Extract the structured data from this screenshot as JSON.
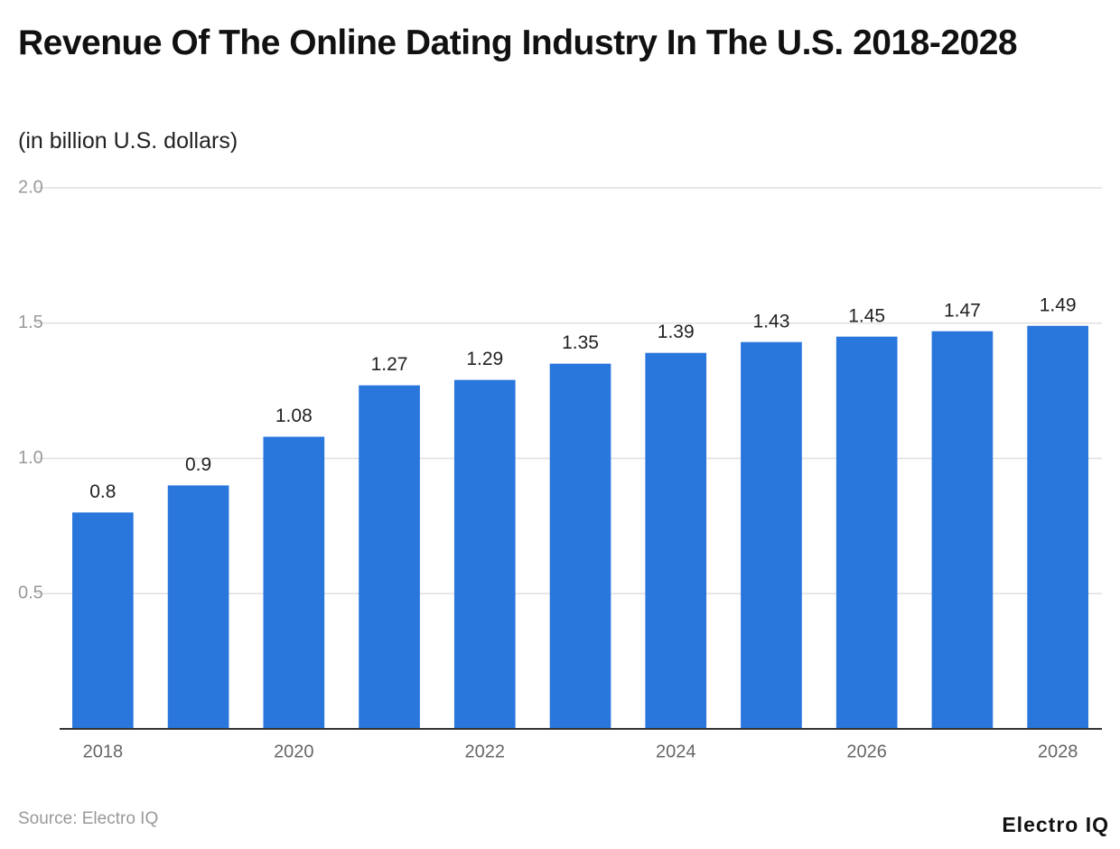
{
  "chart_data": {
    "type": "bar",
    "title": "Revenue Of The Online Dating Industry In The U.S. 2018-2028",
    "subtitle": "(in billion U.S. dollars)",
    "categories": [
      "2018",
      null,
      "2020",
      null,
      "2022",
      null,
      "2024",
      null,
      "2026",
      null,
      "2028"
    ],
    "values": [
      0.8,
      0.9,
      1.08,
      1.27,
      1.29,
      1.35,
      1.39,
      1.43,
      1.45,
      1.47,
      1.49
    ],
    "color": "#2976dd",
    "ylim": [
      0,
      2
    ],
    "yticks": [
      0.5,
      {
        "value": 1,
        "label": "1.0"
      },
      1.5,
      {
        "value": 2,
        "label": "2.0"
      }
    ],
    "grid": true,
    "source": "Source: Electro IQ",
    "brand": "Electro IQ"
  }
}
